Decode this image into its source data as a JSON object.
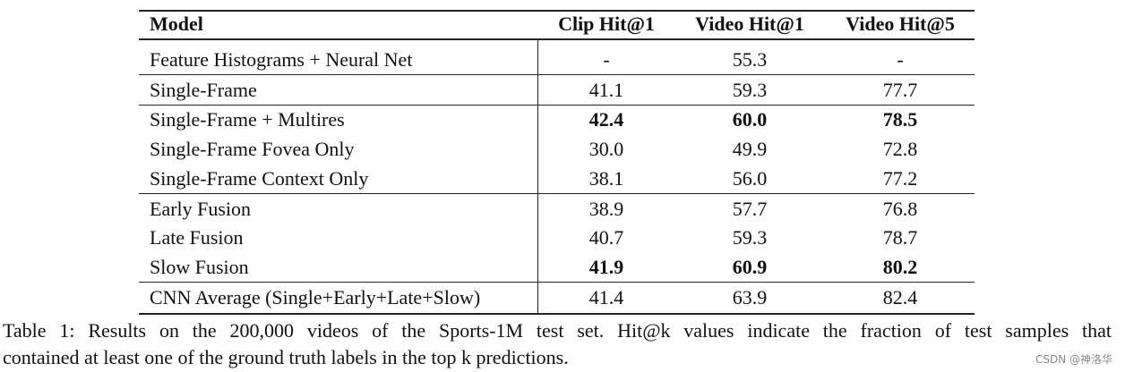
{
  "table": {
    "header": [
      "Model",
      "Clip Hit@1",
      "Video Hit@1",
      "Video Hit@5"
    ],
    "rows": [
      {
        "cells": [
          "Feature Histograms + Neural Net",
          "-",
          "55.3",
          "-"
        ],
        "bold": []
      },
      {
        "cells": [
          "Single-Frame",
          "41.1",
          "59.3",
          "77.7"
        ],
        "bold": []
      },
      {
        "cells": [
          "Single-Frame + Multires",
          "42.4",
          "60.0",
          "78.5"
        ],
        "bold": [
          1,
          2,
          3
        ]
      },
      {
        "cells": [
          "Single-Frame Fovea Only",
          "30.0",
          "49.9",
          "72.8"
        ],
        "bold": []
      },
      {
        "cells": [
          "Single-Frame Context Only",
          "38.1",
          "56.0",
          "77.2"
        ],
        "bold": []
      },
      {
        "cells": [
          "Early Fusion",
          "38.9",
          "57.7",
          "76.8"
        ],
        "bold": []
      },
      {
        "cells": [
          "Late Fusion",
          "40.7",
          "59.3",
          "78.7"
        ],
        "bold": []
      },
      {
        "cells": [
          "Slow Fusion",
          "41.9",
          "60.9",
          "80.2"
        ],
        "bold": [
          1,
          2,
          3
        ]
      },
      {
        "cells": [
          "CNN Average (Single+Early+Late+Slow)",
          "41.4",
          "63.9",
          "82.4"
        ],
        "bold": []
      }
    ]
  },
  "caption": [
    "Table 1: Results on the 200,000 videos of the Sports-1M test set. Hit@k values indicate the fraction of test samples that",
    "contained at least one of the ground truth labels in the top k predictions."
  ],
  "watermark": "CSDN @神洛华"
}
